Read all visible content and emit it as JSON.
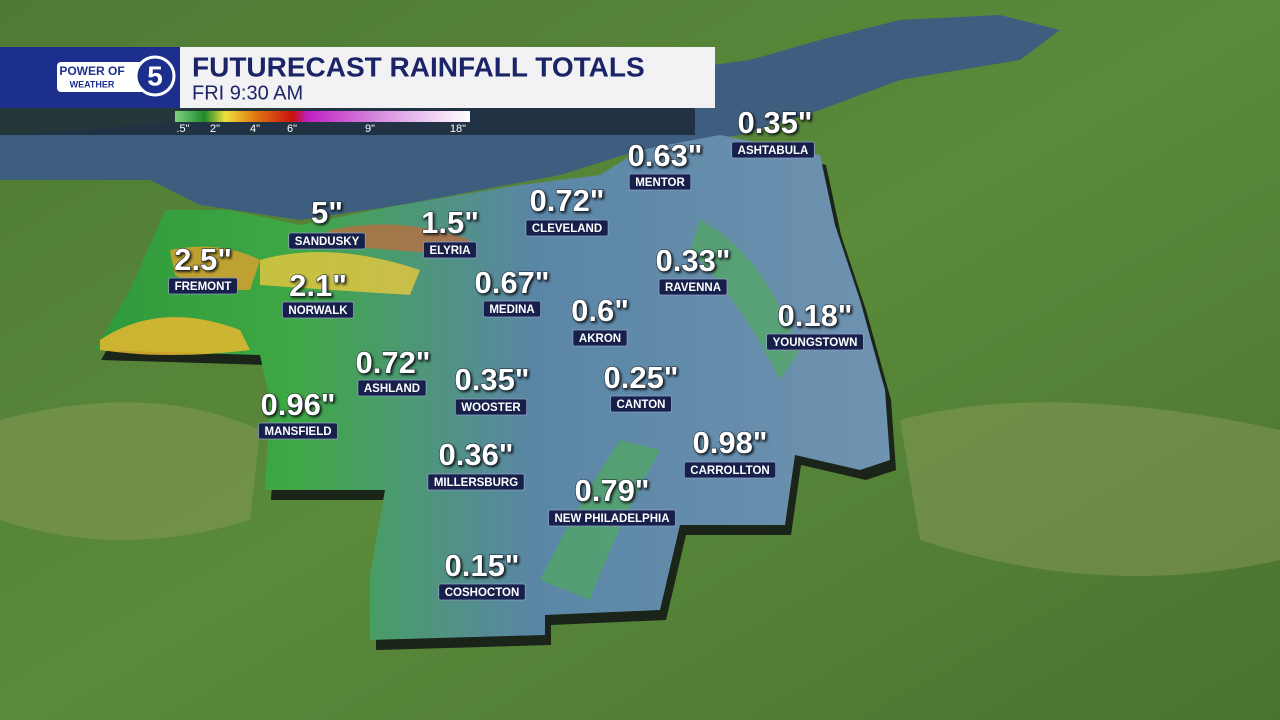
{
  "header": {
    "logo": {
      "top": "POWER OF",
      "number": "5",
      "bottom": "WEATHER"
    },
    "title": "FUTURECAST RAINFALL TOTALS",
    "subtitle": "FRI 9:30 AM"
  },
  "legend": {
    "labels": [
      ".5\"",
      "2\"",
      "4\"",
      "6\"",
      "9\"",
      "18\""
    ]
  },
  "locations": [
    {
      "total": "0.35\"",
      "name": "ASHTABULA"
    },
    {
      "total": "0.63\"",
      "name": "MENTOR"
    },
    {
      "total": "5\"",
      "name": "SANDUSKY"
    },
    {
      "total": "1.5\"",
      "name": "ELYRIA"
    },
    {
      "total": "0.72\"",
      "name": "CLEVELAND"
    },
    {
      "total": "2.5\"",
      "name": "FREMONT"
    },
    {
      "total": "2.1\"",
      "name": "NORWALK"
    },
    {
      "total": "0.67\"",
      "name": "MEDINA"
    },
    {
      "total": "0.33\"",
      "name": "RAVENNA"
    },
    {
      "total": "0.6\"",
      "name": "AKRON"
    },
    {
      "total": "0.18\"",
      "name": "YOUNGSTOWN"
    },
    {
      "total": "0.72\"",
      "name": "ASHLAND"
    },
    {
      "total": "0.35\"",
      "name": "WOOSTER"
    },
    {
      "total": "0.25\"",
      "name": "CANTON"
    },
    {
      "total": "0.96\"",
      "name": "MANSFIELD"
    },
    {
      "total": "0.98\"",
      "name": "CARROLLTON"
    },
    {
      "total": "0.36\"",
      "name": "MILLERSBURG"
    },
    {
      "total": "0.79\"",
      "name": "NEW PHILADELPHIA"
    },
    {
      "total": "0.15\"",
      "name": "COSHOCTON"
    }
  ]
}
